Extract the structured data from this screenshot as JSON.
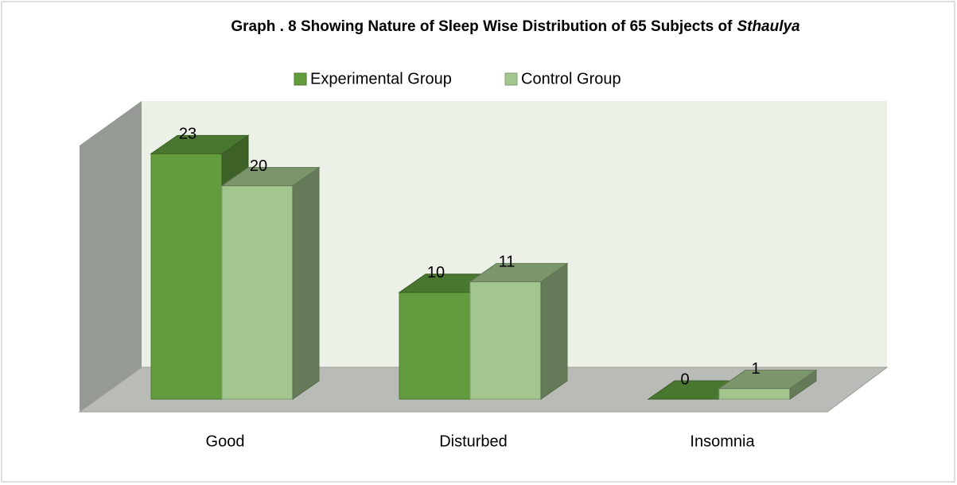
{
  "chart_data": {
    "type": "bar3d",
    "title": [
      "Graph . 8 Showing Nature of Sleep Wise Distribution of 65 Subjects of",
      "Sthaulya"
    ],
    "categories": [
      "Good",
      "Disturbed",
      "Insomnia"
    ],
    "series": [
      {
        "name": "Experimental Group",
        "color": "#629c3e",
        "values": [
          23,
          10,
          0
        ]
      },
      {
        "name": "Control Group",
        "color": "#a3c58e",
        "values": [
          20,
          11,
          1
        ]
      }
    ],
    "legend": "top"
  }
}
